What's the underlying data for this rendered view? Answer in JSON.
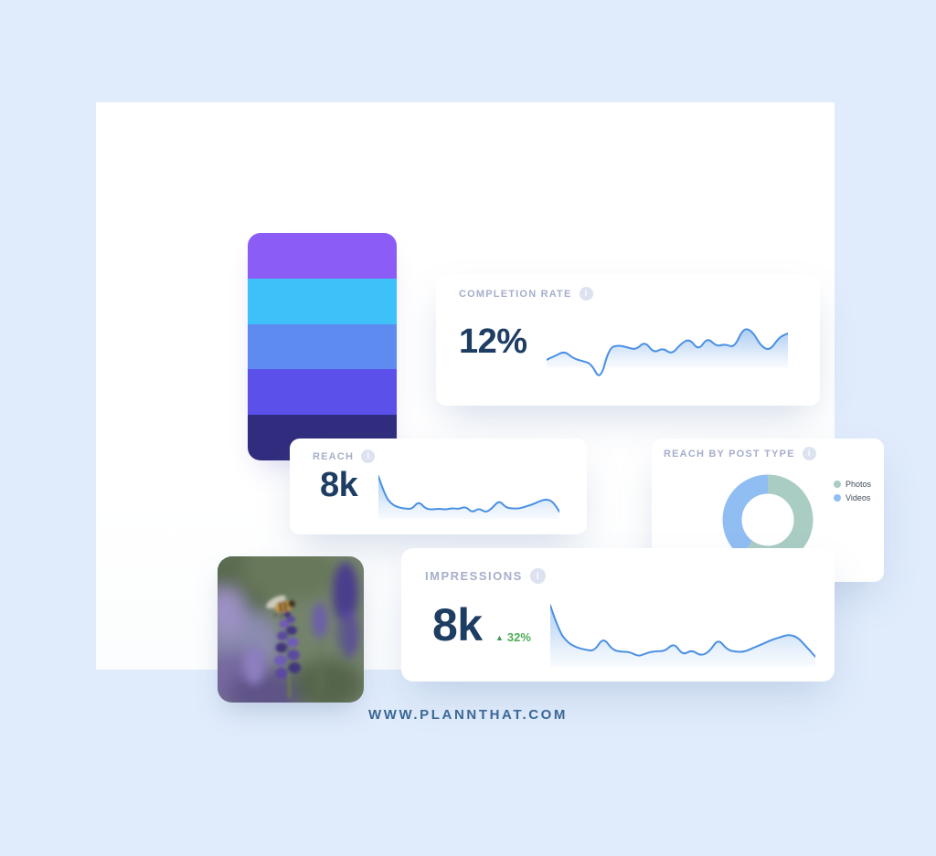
{
  "page": {
    "background": "#E0ECFC",
    "footer_url": "WWW.PLANNTHAT.COM"
  },
  "icons": {
    "info": "i"
  },
  "palette": {
    "colors": [
      "#8B5CF6",
      "#3EC1F9",
      "#5E8BF0",
      "#5B50E9",
      "#312D7E"
    ]
  },
  "cards": {
    "completion": {
      "label": "COMPLETION RATE",
      "value": "12%"
    },
    "reach": {
      "label": "REACH",
      "value": "8k"
    },
    "post_type": {
      "label": "REACH BY POST TYPE",
      "legend": [
        {
          "label": "Photos",
          "color": "#A9CCC3"
        },
        {
          "label": "Videos",
          "color": "#90BDF2"
        }
      ]
    },
    "impressions": {
      "label": "IMPRESSIONS",
      "value": "8k",
      "delta_icon": "▲",
      "delta": "32%"
    }
  },
  "chart_data": [
    {
      "id": "completion-spark",
      "type": "area",
      "title": "Completion Rate",
      "stat": "12%",
      "color": "#4A90E2",
      "ylim": [
        0,
        100
      ],
      "baseline": 30,
      "values": [
        42,
        48,
        55,
        44,
        40,
        36,
        10,
        60,
        64,
        61,
        57,
        70,
        52,
        60,
        50,
        66,
        74,
        56,
        76,
        62,
        66,
        60,
        90,
        86,
        62,
        56,
        76,
        82
      ]
    },
    {
      "id": "reach-spark",
      "type": "area",
      "title": "Reach",
      "stat": "8k",
      "color": "#4A90E2",
      "ylim": [
        0,
        100
      ],
      "baseline": 6,
      "values": [
        88,
        50,
        34,
        28,
        26,
        25,
        40,
        26,
        24,
        26,
        24,
        27,
        25,
        30,
        18,
        27,
        18,
        27,
        42,
        28,
        26,
        26,
        30,
        34,
        40,
        44,
        40,
        20
      ]
    },
    {
      "id": "impressions-spark",
      "type": "area",
      "title": "Impressions",
      "stat": "8k",
      "delta": "+32%",
      "color": "#4A90E2",
      "ylim": [
        0,
        100
      ],
      "baseline": 6,
      "values": [
        94,
        56,
        40,
        33,
        30,
        28,
        48,
        30,
        27,
        27,
        20,
        26,
        28,
        28,
        40,
        22,
        30,
        21,
        27,
        46,
        30,
        27,
        27,
        33,
        38,
        44,
        48,
        52,
        48,
        34,
        20
      ]
    },
    {
      "id": "post-type-donut",
      "type": "pie",
      "title": "Reach by Post Type",
      "legend_position": "right",
      "series": [
        {
          "name": "Photos",
          "value": 60,
          "color": "#A9CCC3"
        },
        {
          "name": "Videos",
          "value": 40,
          "color": "#90BDF2"
        }
      ]
    }
  ]
}
